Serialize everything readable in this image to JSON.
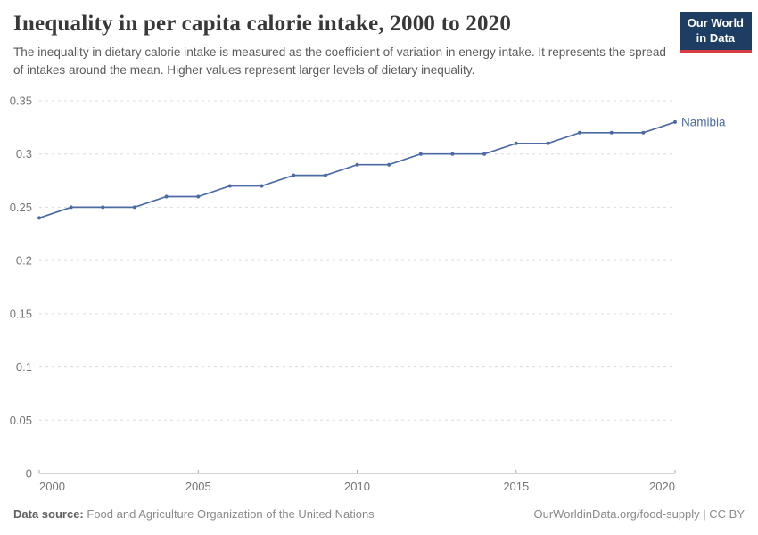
{
  "header": {
    "title": "Inequality in per capita calorie intake, 2000 to 2020",
    "subtitle": "The inequality in dietary calorie intake is measured as the coefficient of variation in energy intake. It represents the spread of intakes around the mean. Higher values represent larger levels of dietary inequality."
  },
  "logo": {
    "line1": "Our World",
    "line2": "in Data",
    "bg_color": "#1d3d63",
    "stripe_color": "#d93d41"
  },
  "chart_data": {
    "type": "line",
    "title": "Inequality in per capita calorie intake, 2000 to 2020",
    "xlabel": "",
    "ylabel": "",
    "xlim": [
      2000,
      2020
    ],
    "ylim": [
      0,
      0.35
    ],
    "xticks": [
      2000,
      2005,
      2010,
      2015,
      2020
    ],
    "yticks": [
      0,
      0.05,
      0.1,
      0.15,
      0.2,
      0.25,
      0.3,
      0.35
    ],
    "grid": "horizontal-dashed",
    "legend_position": "end-of-line-label",
    "line_color": "#4c6ba5",
    "series": [
      {
        "name": "Namibia",
        "x": [
          2000,
          2001,
          2002,
          2003,
          2004,
          2005,
          2006,
          2007,
          2008,
          2009,
          2010,
          2011,
          2012,
          2013,
          2014,
          2015,
          2016,
          2017,
          2018,
          2019,
          2020
        ],
        "values": [
          0.24,
          0.25,
          0.25,
          0.25,
          0.26,
          0.26,
          0.27,
          0.27,
          0.28,
          0.28,
          0.29,
          0.29,
          0.3,
          0.3,
          0.3,
          0.31,
          0.31,
          0.32,
          0.32,
          0.32,
          0.33
        ]
      }
    ]
  },
  "footer": {
    "source_label": "Data source:",
    "source_value": "Food and Agriculture Organization of the United Nations",
    "credit": "OurWorldinData.org/food-supply | CC BY"
  }
}
